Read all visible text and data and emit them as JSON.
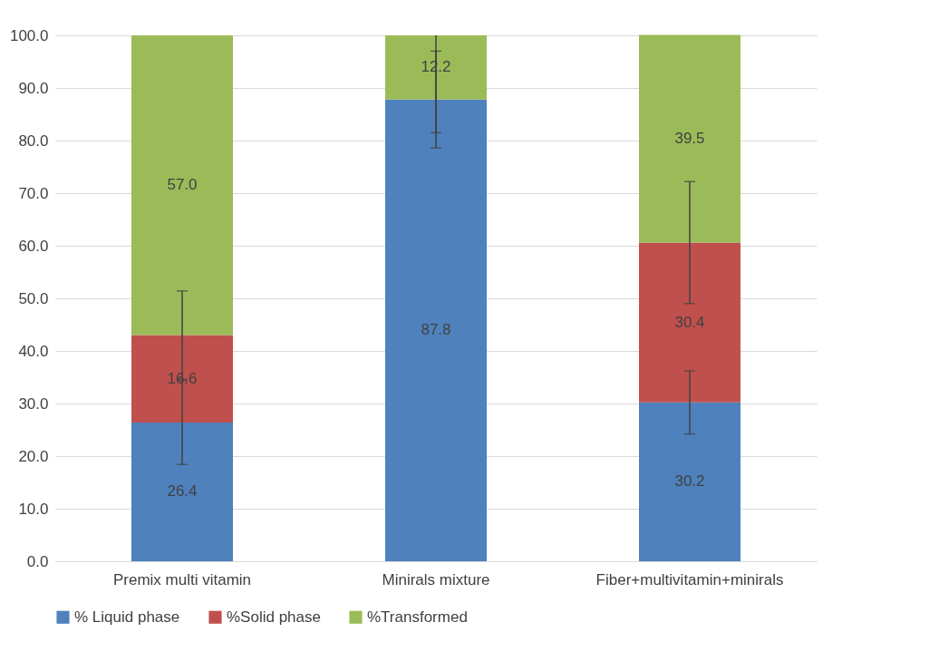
{
  "chart_data": {
    "type": "bar",
    "stacked": true,
    "categories": [
      "Premix multi vitamin",
      "Minirals mixture",
      "Fiber+multivitamin+minirals"
    ],
    "series": [
      {
        "name": "% Liquid phase",
        "color": "#4f81bd",
        "values": [
          26.4,
          87.8,
          30.2
        ],
        "value_labels": [
          "26.4",
          "87.8",
          "30.2"
        ],
        "errors": [
          [
            18.4,
            34.4
          ],
          [
            78.6,
            97.0
          ],
          [
            24.2,
            36.2
          ]
        ]
      },
      {
        "name": "%Solid phase",
        "color": "#c0504d",
        "values": [
          16.6,
          null,
          30.4
        ],
        "value_labels": [
          "16.6",
          null,
          "30.4"
        ],
        "errors": [
          [
            34.6,
            51.4
          ],
          null,
          [
            49.0,
            72.2
          ]
        ]
      },
      {
        "name": "%Transformed",
        "color": "#9bbb59",
        "values": [
          57.0,
          12.2,
          39.5
        ],
        "value_labels": [
          "57.0",
          "12.2",
          "39.5"
        ],
        "errors": [
          null,
          [
            81.5,
            100
          ],
          null
        ]
      }
    ],
    "ylim": [
      0,
      100
    ],
    "yticks": [
      {
        "value": 0,
        "label": "0.0"
      },
      {
        "value": 10,
        "label": "10.0"
      },
      {
        "value": 20,
        "label": "20.0"
      },
      {
        "value": 30,
        "label": "30.0"
      },
      {
        "value": 40,
        "label": "40.0"
      },
      {
        "value": 50,
        "label": "50.0"
      },
      {
        "value": 60,
        "label": "60.0"
      },
      {
        "value": 70,
        "label": "70.0"
      },
      {
        "value": 80,
        "label": "80.0"
      },
      {
        "value": 90,
        "label": "90.0"
      },
      {
        "value": 100,
        "label": "100.0"
      }
    ],
    "grid": "y",
    "legend": "bottom"
  }
}
